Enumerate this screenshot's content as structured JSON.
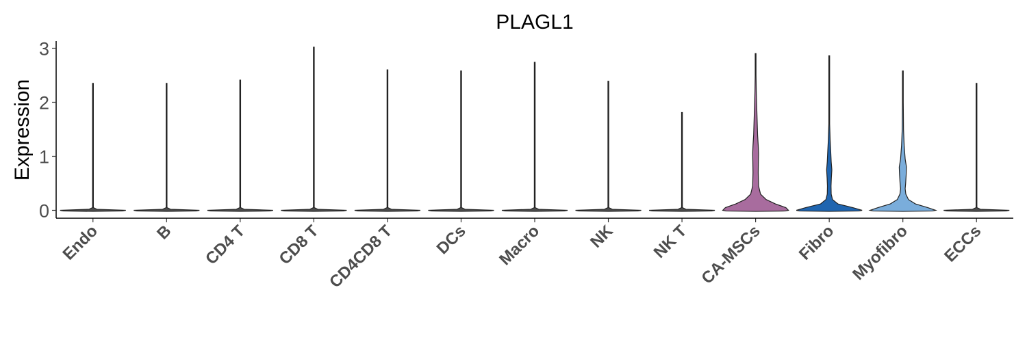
{
  "chart_data": {
    "type": "violin",
    "title": "PLAGL1",
    "xlabel": "",
    "ylabel": "Expression",
    "ylim": [
      -0.15,
      3.15
    ],
    "yticks": [
      0,
      1,
      2,
      3
    ],
    "categories": [
      "Endo",
      "B",
      "CD4 T",
      "CD8 T",
      "CD4CD8 T",
      "DCs",
      "Macro",
      "NK",
      "NK T",
      "CA-MSCs",
      "Fibro",
      "Myofibro",
      "ECCs"
    ],
    "max_values": [
      2.35,
      2.35,
      2.41,
      3.02,
      2.6,
      2.58,
      2.74,
      2.39,
      1.81,
      2.9,
      2.86,
      2.58,
      2.35
    ],
    "colors": [
      "#4d4d4d",
      "#4d4d4d",
      "#4d4d4d",
      "#4d4d4d",
      "#4d4d4d",
      "#4d4d4d",
      "#4d4d4d",
      "#4d4d4d",
      "#4d4d4d",
      "#a86c9e",
      "#1f65b0",
      "#7aaddb",
      "#4d4d4d"
    ],
    "density_profiles": [
      [
        [
          0,
          1.0
        ],
        [
          0.02,
          0.12
        ],
        [
          0.05,
          0.01
        ]
      ],
      [
        [
          0,
          1.0
        ],
        [
          0.02,
          0.12
        ],
        [
          0.05,
          0.01
        ]
      ],
      [
        [
          0,
          1.0
        ],
        [
          0.02,
          0.12
        ],
        [
          0.05,
          0.01
        ]
      ],
      [
        [
          0,
          1.0
        ],
        [
          0.02,
          0.12
        ],
        [
          0.05,
          0.01
        ]
      ],
      [
        [
          0,
          1.0
        ],
        [
          0.02,
          0.12
        ],
        [
          0.05,
          0.01
        ]
      ],
      [
        [
          0,
          1.0
        ],
        [
          0.02,
          0.12
        ],
        [
          0.05,
          0.01
        ]
      ],
      [
        [
          0,
          1.0
        ],
        [
          0.02,
          0.12
        ],
        [
          0.05,
          0.01
        ]
      ],
      [
        [
          0,
          1.0
        ],
        [
          0.02,
          0.12
        ],
        [
          0.05,
          0.01
        ]
      ],
      [
        [
          0,
          1.0
        ],
        [
          0.02,
          0.12
        ],
        [
          0.05,
          0.01
        ]
      ],
      [
        [
          0,
          1.0
        ],
        [
          0.05,
          0.92
        ],
        [
          0.12,
          0.6
        ],
        [
          0.2,
          0.32
        ],
        [
          0.3,
          0.15
        ],
        [
          0.45,
          0.09
        ],
        [
          0.7,
          0.08
        ],
        [
          0.9,
          0.085
        ],
        [
          1.05,
          0.09
        ],
        [
          1.2,
          0.08
        ],
        [
          1.4,
          0.06
        ],
        [
          1.6,
          0.05
        ],
        [
          1.9,
          0.035
        ],
        [
          2.2,
          0.02
        ],
        [
          2.5,
          0.01
        ],
        [
          2.9,
          0.003
        ]
      ],
      [
        [
          0,
          1.0
        ],
        [
          0.05,
          0.72
        ],
        [
          0.12,
          0.26
        ],
        [
          0.2,
          0.1
        ],
        [
          0.3,
          0.06
        ],
        [
          0.45,
          0.055
        ],
        [
          0.6,
          0.065
        ],
        [
          0.75,
          0.08
        ],
        [
          0.9,
          0.06
        ],
        [
          1.1,
          0.045
        ],
        [
          1.3,
          0.028
        ],
        [
          1.6,
          0.012
        ],
        [
          2.0,
          0.006
        ],
        [
          2.86,
          0.003
        ]
      ],
      [
        [
          0,
          1.0
        ],
        [
          0.05,
          0.76
        ],
        [
          0.12,
          0.38
        ],
        [
          0.2,
          0.17
        ],
        [
          0.3,
          0.09
        ],
        [
          0.4,
          0.07
        ],
        [
          0.5,
          0.085
        ],
        [
          0.65,
          0.1
        ],
        [
          0.8,
          0.11
        ],
        [
          0.95,
          0.07
        ],
        [
          1.2,
          0.04
        ],
        [
          1.5,
          0.02
        ],
        [
          2.0,
          0.008
        ],
        [
          2.58,
          0.003
        ]
      ],
      [
        [
          0,
          1.0
        ],
        [
          0.02,
          0.12
        ],
        [
          0.05,
          0.01
        ]
      ]
    ]
  }
}
